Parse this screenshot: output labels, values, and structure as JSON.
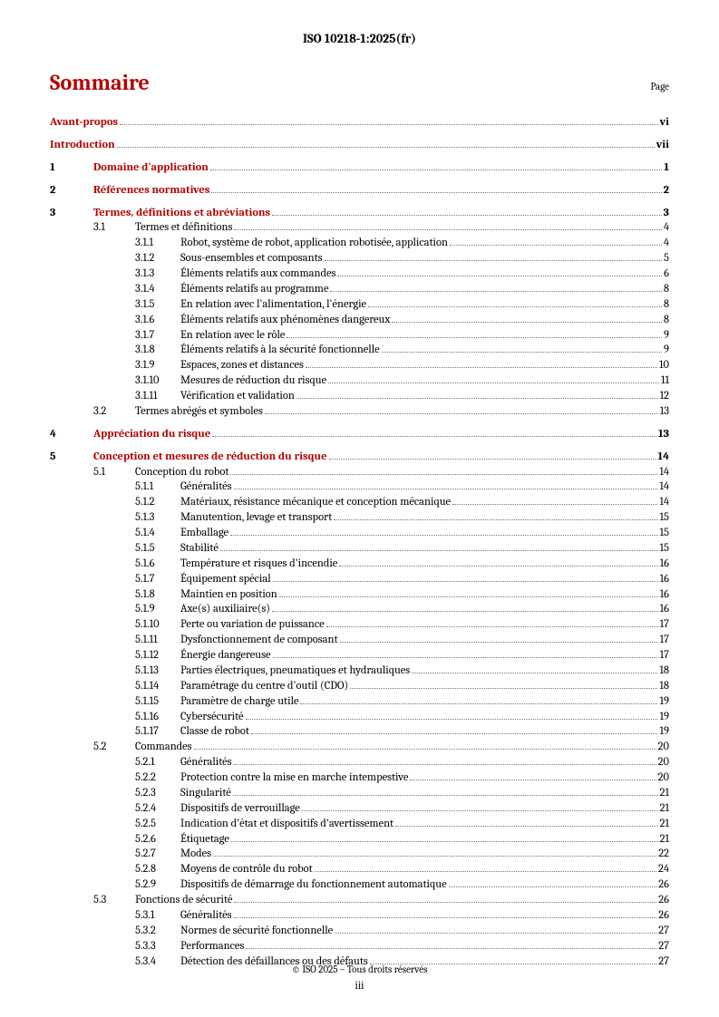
{
  "header": "ISO 10218-1:2025(fr)",
  "title": "Sommaire",
  "page_label": "Page",
  "footer_copyright": "© ISO 2025 – Tous droits réservés",
  "footer_page": "iii",
  "toc": [
    {
      "level": 0,
      "num": "",
      "label": "Avant-propos",
      "page": "vi",
      "bold": true,
      "red": true,
      "spacer_before": false
    },
    {
      "level": 0,
      "num": "",
      "label": "Introduction",
      "page": "vii",
      "bold": true,
      "red": true,
      "spacer_before": true
    },
    {
      "level": 1,
      "num": "1",
      "label": "Domaine d'application",
      "page": "1",
      "bold": true,
      "red": true,
      "spacer_before": true
    },
    {
      "level": 1,
      "num": "2",
      "label": "Références normatives",
      "page": "2",
      "bold": true,
      "red": true,
      "spacer_before": true
    },
    {
      "level": 1,
      "num": "3",
      "label": "Termes, définitions et abréviations",
      "page": "3",
      "bold": true,
      "red": true,
      "spacer_before": true
    },
    {
      "level": 2,
      "num": "3.1",
      "label": "Termes et définitions",
      "page": "4",
      "bold": false,
      "red": false,
      "spacer_before": false
    },
    {
      "level": 3,
      "num": "3.1.1",
      "label": "Robot, système de robot, application robotisée, application",
      "page": "4",
      "bold": false,
      "red": false,
      "spacer_before": false
    },
    {
      "level": 3,
      "num": "3.1.2",
      "label": "Sous-ensembles et composants",
      "page": "5",
      "bold": false,
      "red": false,
      "spacer_before": false
    },
    {
      "level": 3,
      "num": "3.1.3",
      "label": "Éléments relatifs aux commandes",
      "page": "6",
      "bold": false,
      "red": false,
      "spacer_before": false
    },
    {
      "level": 3,
      "num": "3.1.4",
      "label": "Éléments relatifs au programme",
      "page": "8",
      "bold": false,
      "red": false,
      "spacer_before": false
    },
    {
      "level": 3,
      "num": "3.1.5",
      "label": "En relation avec l'alimentation, l'énergie",
      "page": "8",
      "bold": false,
      "red": false,
      "spacer_before": false
    },
    {
      "level": 3,
      "num": "3.1.6",
      "label": "Éléments relatifs aux phénomènes dangereux",
      "page": "8",
      "bold": false,
      "red": false,
      "spacer_before": false
    },
    {
      "level": 3,
      "num": "3.1.7",
      "label": "En relation avec le rôle",
      "page": "9",
      "bold": false,
      "red": false,
      "spacer_before": false
    },
    {
      "level": 3,
      "num": "3.1.8",
      "label": "Éléments relatifs à la sécurité fonctionnelle",
      "page": "9",
      "bold": false,
      "red": false,
      "spacer_before": false
    },
    {
      "level": 3,
      "num": "3.1.9",
      "label": "Espaces, zones et distances",
      "page": "10",
      "bold": false,
      "red": false,
      "spacer_before": false
    },
    {
      "level": 3,
      "num": "3.1.10",
      "label": "Mesures de réduction du risque",
      "page": "11",
      "bold": false,
      "red": false,
      "spacer_before": false
    },
    {
      "level": 3,
      "num": "3.1.11",
      "label": "Vérification et validation",
      "page": "12",
      "bold": false,
      "red": false,
      "spacer_before": false
    },
    {
      "level": 2,
      "num": "3.2",
      "label": "Termes abrégés et symboles",
      "page": "13",
      "bold": false,
      "red": false,
      "spacer_before": false
    },
    {
      "level": 1,
      "num": "4",
      "label": "Appréciation du risque",
      "page": "13",
      "bold": true,
      "red": true,
      "spacer_before": true
    },
    {
      "level": 1,
      "num": "5",
      "label": "Conception et mesures de réduction du risque",
      "page": "14",
      "bold": true,
      "red": true,
      "spacer_before": true
    },
    {
      "level": 2,
      "num": "5.1",
      "label": "Conception du robot",
      "page": "14",
      "bold": false,
      "red": false,
      "spacer_before": false
    },
    {
      "level": 3,
      "num": "5.1.1",
      "label": "Généralités",
      "page": "14",
      "bold": false,
      "red": false,
      "spacer_before": false
    },
    {
      "level": 3,
      "num": "5.1.2",
      "label": "Matériaux, résistance mécanique et conception mécanique",
      "page": "14",
      "bold": false,
      "red": false,
      "spacer_before": false
    },
    {
      "level": 3,
      "num": "5.1.3",
      "label": "Manutention, levage et transport",
      "page": "15",
      "bold": false,
      "red": false,
      "spacer_before": false
    },
    {
      "level": 3,
      "num": "5.1.4",
      "label": "Emballage",
      "page": "15",
      "bold": false,
      "red": false,
      "spacer_before": false
    },
    {
      "level": 3,
      "num": "5.1.5",
      "label": "Stabilité",
      "page": "15",
      "bold": false,
      "red": false,
      "spacer_before": false
    },
    {
      "level": 3,
      "num": "5.1.6",
      "label": "Température et risques d'incendie",
      "page": "16",
      "bold": false,
      "red": false,
      "spacer_before": false
    },
    {
      "level": 3,
      "num": "5.1.7",
      "label": "Équipement spécial",
      "page": "16",
      "bold": false,
      "red": false,
      "spacer_before": false
    },
    {
      "level": 3,
      "num": "5.1.8",
      "label": "Maintien en position",
      "page": "16",
      "bold": false,
      "red": false,
      "spacer_before": false
    },
    {
      "level": 3,
      "num": "5.1.9",
      "label": "Axe(s) auxiliaire(s)",
      "page": "16",
      "bold": false,
      "red": false,
      "spacer_before": false
    },
    {
      "level": 3,
      "num": "5.1.10",
      "label": "Perte ou variation de puissance",
      "page": "17",
      "bold": false,
      "red": false,
      "spacer_before": false
    },
    {
      "level": 3,
      "num": "5.1.11",
      "label": "Dysfonctionnement de composant",
      "page": "17",
      "bold": false,
      "red": false,
      "spacer_before": false
    },
    {
      "level": 3,
      "num": "5.1.12",
      "label": "Énergie dangereuse",
      "page": "17",
      "bold": false,
      "red": false,
      "spacer_before": false
    },
    {
      "level": 3,
      "num": "5.1.13",
      "label": "Parties électriques, pneumatiques et hydrauliques",
      "page": "18",
      "bold": false,
      "red": false,
      "spacer_before": false
    },
    {
      "level": 3,
      "num": "5.1.14",
      "label": "Paramétrage du centre d'outil (CDO)",
      "page": "18",
      "bold": false,
      "red": false,
      "spacer_before": false
    },
    {
      "level": 3,
      "num": "5.1.15",
      "label": "Paramètre de charge utile",
      "page": "19",
      "bold": false,
      "red": false,
      "spacer_before": false
    },
    {
      "level": 3,
      "num": "5.1.16",
      "label": "Cybersécurité",
      "page": "19",
      "bold": false,
      "red": false,
      "spacer_before": false
    },
    {
      "level": 3,
      "num": "5.1.17",
      "label": "Classe de robot",
      "page": "19",
      "bold": false,
      "red": false,
      "spacer_before": false
    },
    {
      "level": 2,
      "num": "5.2",
      "label": "Commandes",
      "page": "20",
      "bold": false,
      "red": false,
      "spacer_before": false
    },
    {
      "level": 3,
      "num": "5.2.1",
      "label": "Généralités",
      "page": "20",
      "bold": false,
      "red": false,
      "spacer_before": false
    },
    {
      "level": 3,
      "num": "5.2.2",
      "label": "Protection contre la mise en marche intempestive",
      "page": "20",
      "bold": false,
      "red": false,
      "spacer_before": false
    },
    {
      "level": 3,
      "num": "5.2.3",
      "label": "Singularité",
      "page": "21",
      "bold": false,
      "red": false,
      "spacer_before": false
    },
    {
      "level": 3,
      "num": "5.2.4",
      "label": "Dispositifs de verrouillage",
      "page": "21",
      "bold": false,
      "red": false,
      "spacer_before": false
    },
    {
      "level": 3,
      "num": "5.2.5",
      "label": "Indication d'état et dispositifs d'avertissement",
      "page": "21",
      "bold": false,
      "red": false,
      "spacer_before": false
    },
    {
      "level": 3,
      "num": "5.2.6",
      "label": "Étiquetage",
      "page": "21",
      "bold": false,
      "red": false,
      "spacer_before": false
    },
    {
      "level": 3,
      "num": "5.2.7",
      "label": "Modes",
      "page": "22",
      "bold": false,
      "red": false,
      "spacer_before": false
    },
    {
      "level": 3,
      "num": "5.2.8",
      "label": "Moyens de contrôle du robot",
      "page": "24",
      "bold": false,
      "red": false,
      "spacer_before": false
    },
    {
      "level": 3,
      "num": "5.2.9",
      "label": "Dispositifs de démarrage du fonctionnement automatique",
      "page": "26",
      "bold": false,
      "red": false,
      "spacer_before": false
    },
    {
      "level": 2,
      "num": "5.3",
      "label": "Fonctions de sécurité",
      "page": "26",
      "bold": false,
      "red": false,
      "spacer_before": false
    },
    {
      "level": 3,
      "num": "5.3.1",
      "label": "Généralités",
      "page": "26",
      "bold": false,
      "red": false,
      "spacer_before": false
    },
    {
      "level": 3,
      "num": "5.3.2",
      "label": "Normes de sécurité fonctionnelle",
      "page": "27",
      "bold": false,
      "red": false,
      "spacer_before": false
    },
    {
      "level": 3,
      "num": "5.3.3",
      "label": "Performances",
      "page": "27",
      "bold": false,
      "red": false,
      "spacer_before": false
    },
    {
      "level": 3,
      "num": "5.3.4",
      "label": "Détection des défaillances ou des défauts",
      "page": "27",
      "bold": false,
      "red": false,
      "spacer_before": false
    }
  ]
}
